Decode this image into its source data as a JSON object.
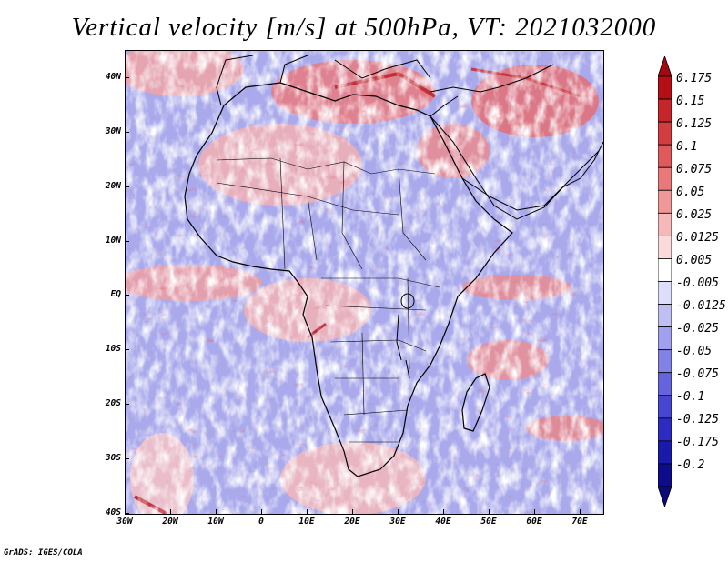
{
  "title": "Vertical velocity [m/s] at 500hPa, VT: 2021032000",
  "map": {
    "region": "Africa",
    "lat_labels": [
      "40N",
      "30N",
      "20N",
      "10N",
      "EQ",
      "10S",
      "20S",
      "30S",
      "40S"
    ],
    "lon_labels": [
      "30W",
      "20W",
      "10W",
      "0",
      "10E",
      "20E",
      "30E",
      "40E",
      "50E",
      "60E",
      "70E"
    ],
    "lat_range": [
      -40,
      45
    ],
    "lon_range": [
      -30,
      75
    ]
  },
  "colorbar": {
    "labels": [
      "0.175",
      "0.15",
      "0.125",
      "0.1",
      "0.075",
      "0.05",
      "0.025",
      "0.0125",
      "0.005",
      "-0.005",
      "-0.0125",
      "-0.025",
      "-0.05",
      "-0.075",
      "-0.1",
      "-0.125",
      "-0.175",
      "-0.2"
    ],
    "colors": [
      "#b40f14",
      "#c4262a",
      "#d33d40",
      "#df5a5b",
      "#e97878",
      "#f09898",
      "#f6b9b9",
      "#fadada",
      "#ffffff",
      "#dedefa",
      "#bfbff4",
      "#a0a0ee",
      "#8282e6",
      "#6464dc",
      "#4646d0",
      "#2c2cc2",
      "#1a1aaa",
      "#0c0c8c"
    ],
    "top_color": "#a00a10",
    "bottom_color": "#0a0a78"
  },
  "credit": "GrADS: IGES/COLA"
}
